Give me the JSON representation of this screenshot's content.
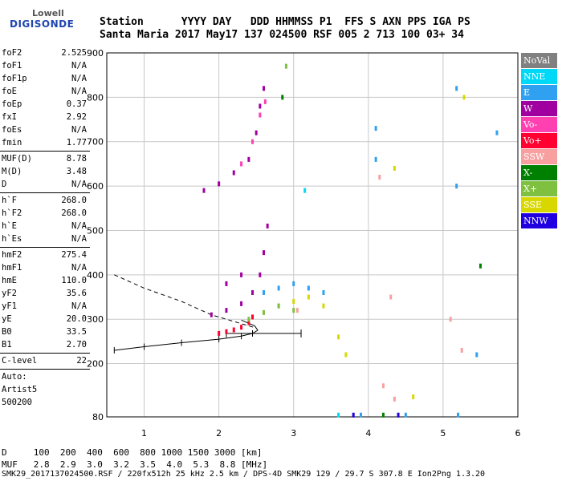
{
  "logo": {
    "line1": "Lowell",
    "line2": "DIGISONDE"
  },
  "header": {
    "line1": "Station      YYYY DAY   DDD HHMMSS P1  FFS S AXN PPS IGA PS",
    "line2": "Santa Maria 2017 May17 137 024500 RSF 005 2 713 100 03+ 34"
  },
  "params_top": [
    {
      "label": "foF2",
      "value": "2.525"
    },
    {
      "label": "foF1",
      "value": "N/A"
    },
    {
      "label": "foF1p",
      "value": "N/A"
    },
    {
      "label": "foE",
      "value": "N/A"
    },
    {
      "label": "foEp",
      "value": "0.37"
    },
    {
      "label": "fxI",
      "value": "2.92"
    },
    {
      "label": "foEs",
      "value": "N/A"
    },
    {
      "label": "fmin",
      "value": "1.77"
    }
  ],
  "params_muf": [
    {
      "label": "MUF(D)",
      "value": "8.78"
    },
    {
      "label": "M(D)",
      "value": "3.48"
    },
    {
      "label": "D",
      "value": "N/A"
    }
  ],
  "params_h": [
    {
      "label": "h`F",
      "value": "268.0"
    },
    {
      "label": "h`F2",
      "value": "268.0"
    },
    {
      "label": "h`E",
      "value": "N/A"
    },
    {
      "label": "h`Es",
      "value": "N/A"
    }
  ],
  "params_prof": [
    {
      "label": "hmF2",
      "value": "275.4"
    },
    {
      "label": "hmF1",
      "value": "N/A"
    },
    {
      "label": "hmE",
      "value": "110.0"
    },
    {
      "label": "yF2",
      "value": "35.6"
    },
    {
      "label": "yF1",
      "value": "N/A"
    },
    {
      "label": "yE",
      "value": "20.0"
    },
    {
      "label": "B0",
      "value": "33.5"
    },
    {
      "label": "B1",
      "value": "2.70"
    }
  ],
  "params_c": [
    {
      "label": "C-level",
      "value": "22"
    }
  ],
  "auto": {
    "line1": "Auto:",
    "line2": "Artist5",
    "line3": "500200"
  },
  "legend": [
    {
      "label": "NoVal",
      "color": "#808080"
    },
    {
      "label": "NNE",
      "color": "#00d8f8"
    },
    {
      "label": "E",
      "color": "#30a0f0"
    },
    {
      "label": "W",
      "color": "#a000a0"
    },
    {
      "label": "Vo-",
      "color": "#ff40b0"
    },
    {
      "label": "Vo+",
      "color": "#ff0030"
    },
    {
      "label": "SSW",
      "color": "#f8a0a0"
    },
    {
      "label": "X-",
      "color": "#008000"
    },
    {
      "label": "X+",
      "color": "#80c040"
    },
    {
      "label": "SSE",
      "color": "#d8d800"
    },
    {
      "label": "NNW",
      "color": "#2000e0"
    }
  ],
  "bottom": {
    "line1": "D     100  200  400  600  800 1000 1500 3000 [km]",
    "line2": "MUF   2.8  2.9  3.0  3.2  3.5  4.0  5.3  8.8 [MHz]"
  },
  "footer": "SMK29_2017137024500.RSF / 220fx512h 25 kHz 2.5 km / DPS-4D SMK29 129 / 29.7 S 307.8 E Ion2Png 1.3.20",
  "chart_data": {
    "type": "scatter",
    "title": "",
    "xlabel": "",
    "ylabel": "",
    "xlim": [
      0.5,
      6.0
    ],
    "ylim": [
      80,
      900
    ],
    "xticks": [
      1,
      2,
      3,
      4,
      5,
      6
    ],
    "yticks": [
      80,
      200,
      300,
      400,
      500,
      600,
      700,
      800,
      900
    ],
    "grid": true,
    "legend_position": "right",
    "series": [
      {
        "color": "#ff0030",
        "points": [
          [
            2.0,
            268
          ],
          [
            2.1,
            272
          ],
          [
            2.2,
            276
          ],
          [
            2.3,
            282
          ],
          [
            2.4,
            292
          ],
          [
            2.45,
            305
          ]
        ]
      },
      {
        "color": "#a000a0",
        "points": [
          [
            1.9,
            310
          ],
          [
            2.1,
            320
          ],
          [
            2.3,
            335
          ],
          [
            2.45,
            360
          ],
          [
            2.55,
            400
          ],
          [
            2.6,
            450
          ],
          [
            2.65,
            510
          ],
          [
            2.1,
            380
          ],
          [
            2.3,
            400
          ]
        ]
      },
      {
        "color": "#a000a0",
        "points": [
          [
            1.8,
            590
          ],
          [
            2.0,
            605
          ],
          [
            2.2,
            630
          ],
          [
            2.4,
            660
          ],
          [
            2.5,
            720
          ],
          [
            2.55,
            780
          ],
          [
            2.6,
            820
          ]
        ]
      },
      {
        "color": "#ff40b0",
        "points": [
          [
            2.3,
            650
          ],
          [
            2.45,
            700
          ],
          [
            2.55,
            760
          ],
          [
            2.62,
            790
          ]
        ]
      },
      {
        "color": "#30a0f0",
        "points": [
          [
            2.6,
            360
          ],
          [
            2.8,
            370
          ],
          [
            3.0,
            380
          ],
          [
            3.2,
            370
          ],
          [
            3.4,
            360
          ],
          [
            4.1,
            730
          ],
          [
            4.1,
            660
          ],
          [
            5.18,
            820
          ],
          [
            5.18,
            600
          ],
          [
            5.72,
            720
          ],
          [
            5.45,
            220
          ],
          [
            3.9,
            84
          ],
          [
            4.5,
            84
          ],
          [
            5.2,
            84
          ]
        ]
      },
      {
        "color": "#d8d800",
        "points": [
          [
            2.8,
            330
          ],
          [
            3.0,
            340
          ],
          [
            3.2,
            350
          ],
          [
            3.4,
            330
          ],
          [
            3.6,
            260
          ],
          [
            3.7,
            220
          ],
          [
            4.35,
            640
          ],
          [
            5.28,
            800
          ],
          [
            4.6,
            125
          ]
        ]
      },
      {
        "color": "#80c040",
        "points": [
          [
            2.4,
            300
          ],
          [
            2.6,
            315
          ],
          [
            2.8,
            330
          ],
          [
            3.0,
            320
          ],
          [
            2.9,
            870
          ]
        ]
      },
      {
        "color": "#008000",
        "points": [
          [
            2.85,
            800
          ],
          [
            5.5,
            420
          ],
          [
            4.2,
            84
          ]
        ]
      },
      {
        "color": "#f8a0a0",
        "points": [
          [
            4.15,
            620
          ],
          [
            4.3,
            350
          ],
          [
            5.25,
            230
          ],
          [
            5.1,
            300
          ],
          [
            3.05,
            320
          ],
          [
            4.2,
            150
          ],
          [
            4.35,
            120
          ]
        ]
      },
      {
        "color": "#00d8f8",
        "points": [
          [
            3.15,
            590
          ],
          [
            3.6,
            84
          ]
        ]
      },
      {
        "color": "#2000e0",
        "points": [
          [
            3.8,
            84
          ],
          [
            4.4,
            84
          ]
        ]
      }
    ],
    "profile_dashed": [
      [
        0.6,
        400
      ],
      [
        1.0,
        370
      ],
      [
        1.5,
        340
      ],
      [
        1.9,
        310
      ],
      [
        2.2,
        295
      ],
      [
        2.5,
        280
      ]
    ],
    "profile_solid": [
      [
        0.6,
        230
      ],
      [
        1.0,
        238
      ],
      [
        1.5,
        247
      ],
      [
        2.0,
        255
      ],
      [
        2.3,
        262
      ],
      [
        2.45,
        268
      ],
      [
        2.52,
        275
      ],
      [
        2.48,
        285
      ],
      [
        2.3,
        298
      ]
    ],
    "error_bar_range": [
      2.1,
      3.1
    ],
    "error_bar_height": 268
  }
}
